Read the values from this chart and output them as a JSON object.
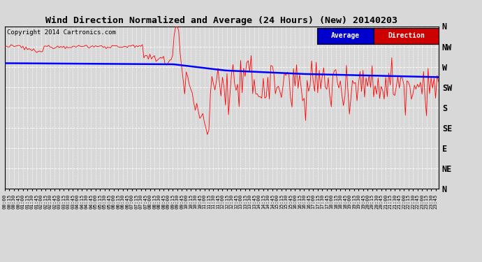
{
  "title": "Wind Direction Normalized and Average (24 Hours) (New) 20140203",
  "copyright": "Copyright 2014 Cartronics.com",
  "yticks_labels": [
    "N",
    "NW",
    "W",
    "SW",
    "S",
    "SE",
    "E",
    "NE",
    "N"
  ],
  "yticks_values": [
    360,
    315,
    270,
    225,
    180,
    135,
    90,
    45,
    0
  ],
  "ylim": [
    0,
    360
  ],
  "background_color": "#d8d8d8",
  "plot_bg_color": "#d8d8d8",
  "grid_color": "#ffffff",
  "red_color": "#ff0000",
  "blue_color": "#0000ff",
  "black_color": "#000000",
  "legend_avg_bg": "#0000cc",
  "legend_dir_bg": "#cc0000",
  "legend_avg_text": "Average",
  "legend_dir_text": "Direction"
}
